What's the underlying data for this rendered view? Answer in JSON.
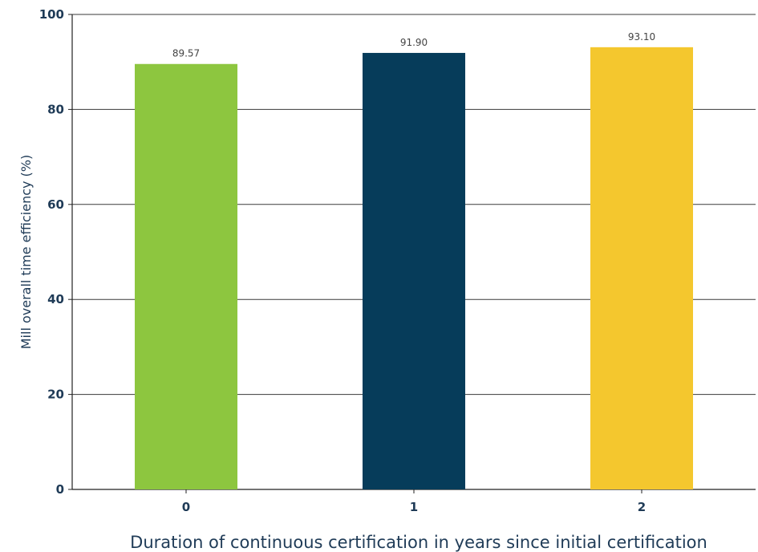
{
  "chart_data": {
    "type": "bar",
    "categories": [
      "0",
      "1",
      "2"
    ],
    "values": [
      89.57,
      91.9,
      93.1
    ],
    "value_labels": [
      "89.57",
      "91.90",
      "93.10"
    ],
    "colors": [
      "#8dc63f",
      "#063c5a",
      "#f4c72e"
    ],
    "xlabel": "Duration of continuous certification in years since initial certification",
    "ylabel": "Mill overall time efficiency (%)",
    "ylim": [
      0,
      100
    ],
    "yticks": [
      0,
      20,
      40,
      60,
      80,
      100
    ],
    "ytick_labels": [
      "0",
      "20",
      "40",
      "60",
      "80",
      "100"
    ],
    "grid": true,
    "legend": "none"
  },
  "colors": {
    "text": "#1f3b57",
    "grid": "#3a3a3a",
    "axis": "#222222"
  }
}
